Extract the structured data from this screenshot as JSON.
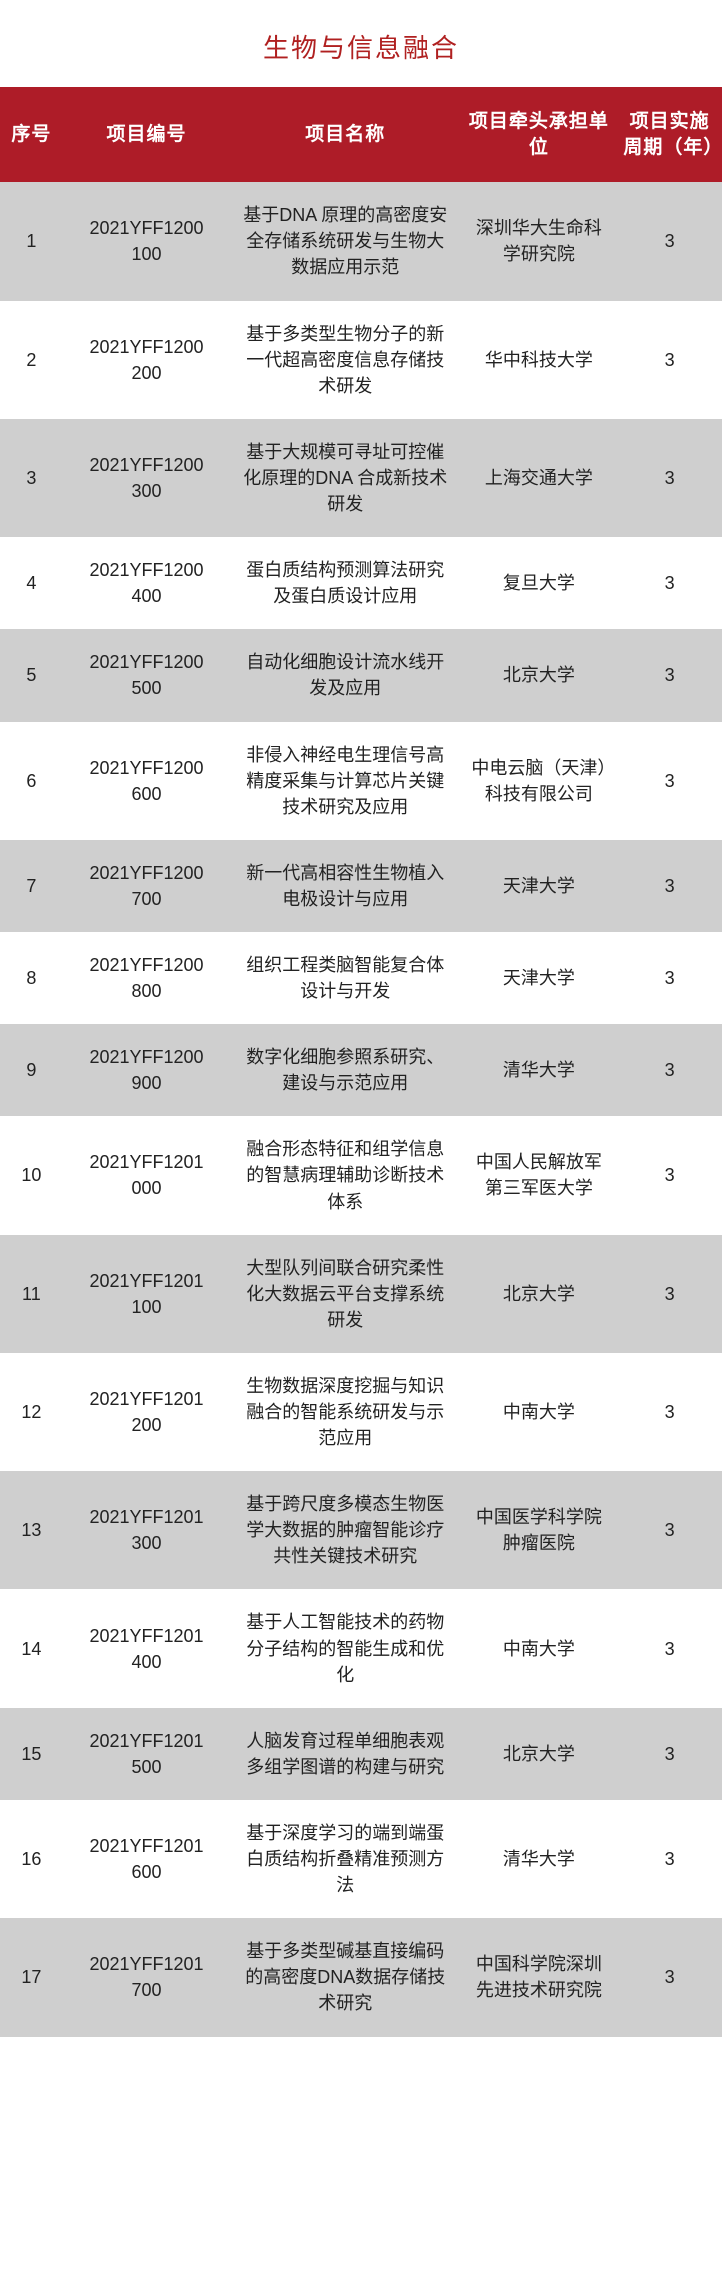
{
  "title": "生物与信息融合",
  "columns": {
    "seq": "序号",
    "id": "项目编号",
    "name": "项目名称",
    "unit": "项目牵头承担单位",
    "cycle": "项目实施周期（年）"
  },
  "rows": [
    {
      "seq": "1",
      "id1": "2021YFF1200",
      "id2": "100",
      "name": "基于DNA 原理的高密度安全存储系统研发与生物大数据应用示范",
      "unit": "深圳华大生命科学研究院",
      "cycle": "3"
    },
    {
      "seq": "2",
      "id1": "2021YFF1200",
      "id2": "200",
      "name": "基于多类型生物分子的新一代超高密度信息存储技术研发",
      "unit": "华中科技大学",
      "cycle": "3"
    },
    {
      "seq": "3",
      "id1": "2021YFF1200",
      "id2": "300",
      "name": "基于大规模可寻址可控催化原理的DNA 合成新技术研发",
      "unit": "上海交通大学",
      "cycle": "3"
    },
    {
      "seq": "4",
      "id1": "2021YFF1200",
      "id2": "400",
      "name": "蛋白质结构预测算法研究及蛋白质设计应用",
      "unit": "复旦大学",
      "cycle": "3"
    },
    {
      "seq": "5",
      "id1": "2021YFF1200",
      "id2": "500",
      "name": "自动化细胞设计流水线开发及应用",
      "unit": "北京大学",
      "cycle": "3"
    },
    {
      "seq": "6",
      "id1": "2021YFF1200",
      "id2": "600",
      "name": "非侵入神经电生理信号高精度采集与计算芯片关键技术研究及应用",
      "unit": "中电云脑（天津）科技有限公司",
      "cycle": "3"
    },
    {
      "seq": "7",
      "id1": "2021YFF1200",
      "id2": "700",
      "name": "新一代高相容性生物植入电极设计与应用",
      "unit": "天津大学",
      "cycle": "3"
    },
    {
      "seq": "8",
      "id1": "2021YFF1200",
      "id2": "800",
      "name": "组织工程类脑智能复合体设计与开发",
      "unit": "天津大学",
      "cycle": "3"
    },
    {
      "seq": "9",
      "id1": "2021YFF1200",
      "id2": "900",
      "name": "数字化细胞参照系研究、建设与示范应用",
      "unit": "清华大学",
      "cycle": "3"
    },
    {
      "seq": "10",
      "id1": "2021YFF1201",
      "id2": "000",
      "name": "融合形态特征和组学信息的智慧病理辅助诊断技术体系",
      "unit": "中国人民解放军第三军医大学",
      "cycle": "3"
    },
    {
      "seq": "11",
      "id1": "2021YFF1201",
      "id2": "100",
      "name": "大型队列间联合研究柔性化大数据云平台支撑系统研发",
      "unit": "北京大学",
      "cycle": "3"
    },
    {
      "seq": "12",
      "id1": "2021YFF1201",
      "id2": "200",
      "name": "生物数据深度挖掘与知识融合的智能系统研发与示范应用",
      "unit": "中南大学",
      "cycle": "3"
    },
    {
      "seq": "13",
      "id1": "2021YFF1201",
      "id2": "300",
      "name": "基于跨尺度多模态生物医学大数据的肿瘤智能诊疗共性关键技术研究",
      "unit": "中国医学科学院肿瘤医院",
      "cycle": "3"
    },
    {
      "seq": "14",
      "id1": "2021YFF1201",
      "id2": "400",
      "name": "基于人工智能技术的药物分子结构的智能生成和优化",
      "unit": "中南大学",
      "cycle": "3"
    },
    {
      "seq": "15",
      "id1": "2021YFF1201",
      "id2": "500",
      "name": "人脑发育过程单细胞表观多组学图谱的构建与研究",
      "unit": "北京大学",
      "cycle": "3"
    },
    {
      "seq": "16",
      "id1": "2021YFF1201",
      "id2": "600",
      "name": "基于深度学习的端到端蛋白质结构折叠精准预测方法",
      "unit": "清华大学",
      "cycle": "3"
    },
    {
      "seq": "17",
      "id1": "2021YFF1201",
      "id2": "700",
      "name": "基于多类型碱基直接编码的高密度DNA数据存储技术研究",
      "unit": "中国科学院深圳先进技术研究院",
      "cycle": "3"
    }
  ],
  "style": {
    "title_color": "#b02020",
    "header_bg": "#ae1c28",
    "header_fg": "#ffffff",
    "row_odd_bg": "#cfcfcf",
    "row_even_bg": "#ffffff",
    "cell_fg": "#222222"
  }
}
